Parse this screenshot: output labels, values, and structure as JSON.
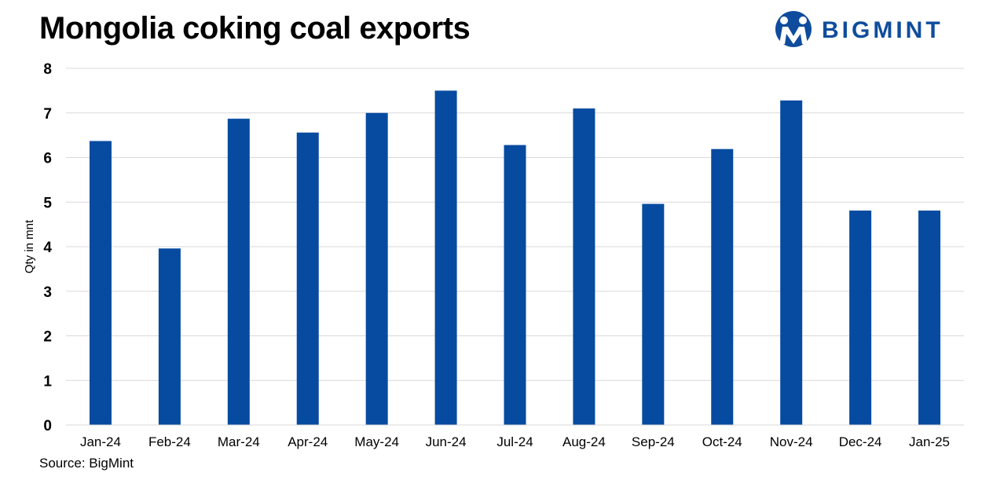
{
  "header": {
    "title": "Mongolia coking coal exports",
    "logo_text": "BIGMINT"
  },
  "footer": {
    "source": "Source: BigMint"
  },
  "colors": {
    "bar": "#064ba0",
    "grid": "#d9d9d9",
    "brand": "#0f4c9d"
  },
  "chart_data": {
    "type": "bar",
    "categories": [
      "Jan-24",
      "Feb-24",
      "Mar-24",
      "Apr-24",
      "May-24",
      "Jun-24",
      "Jul-24",
      "Aug-24",
      "Sep-24",
      "Oct-24",
      "Nov-24",
      "Dec-24",
      "Jan-25"
    ],
    "values": [
      6.37,
      3.96,
      6.87,
      6.56,
      7.0,
      7.5,
      6.28,
      7.1,
      4.96,
      6.19,
      7.28,
      4.81,
      4.81
    ],
    "title": "Mongolia coking coal exports",
    "xlabel": "",
    "ylabel": "Qty in mnt",
    "ylim": [
      0,
      8
    ],
    "yticks": [
      "0",
      "1",
      "2",
      "3",
      "4",
      "5",
      "6",
      "7",
      "8"
    ],
    "grid": true,
    "legend": "none"
  }
}
